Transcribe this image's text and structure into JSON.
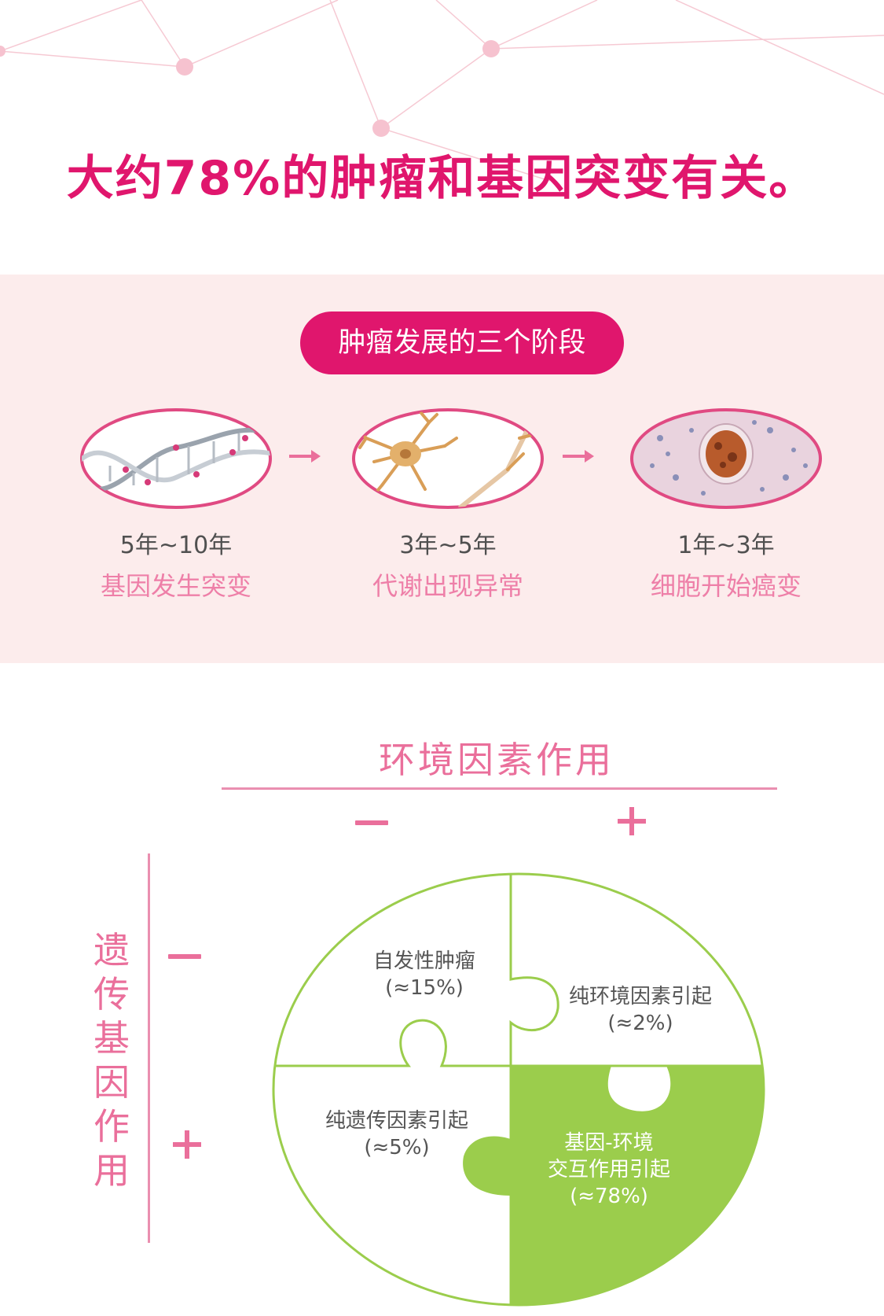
{
  "headline": "大约78%的肿瘤和基因突变有关。",
  "stages": {
    "title": "肿瘤发展的三个阶段",
    "items": [
      {
        "duration": "5年~10年",
        "label": "基因发生突变"
      },
      {
        "duration": "3年~5年",
        "label": "代谢出现异常"
      },
      {
        "duration": "1年~3年",
        "label": "细胞开始癌变"
      }
    ]
  },
  "matrix": {
    "env_title": "环境因素作用",
    "gene_title": [
      "遗",
      "传",
      "基",
      "因",
      "作",
      "用"
    ],
    "quadrants": {
      "top_left": [
        "自发性肿瘤",
        "(≈15%)"
      ],
      "top_right": [
        "纯环境因素引起",
        "(≈2%)"
      ],
      "bottom_left": [
        "纯遗传因素引起",
        "(≈5%)"
      ],
      "bottom_right": [
        "基因-环境",
        "交互作用引起",
        "(≈78%)"
      ]
    }
  },
  "colors": {
    "accent": "#e0166d",
    "soft_pink": "#ea6f9b",
    "band_bg": "#fcecec",
    "puzzle_green": "#9bcd4c"
  }
}
